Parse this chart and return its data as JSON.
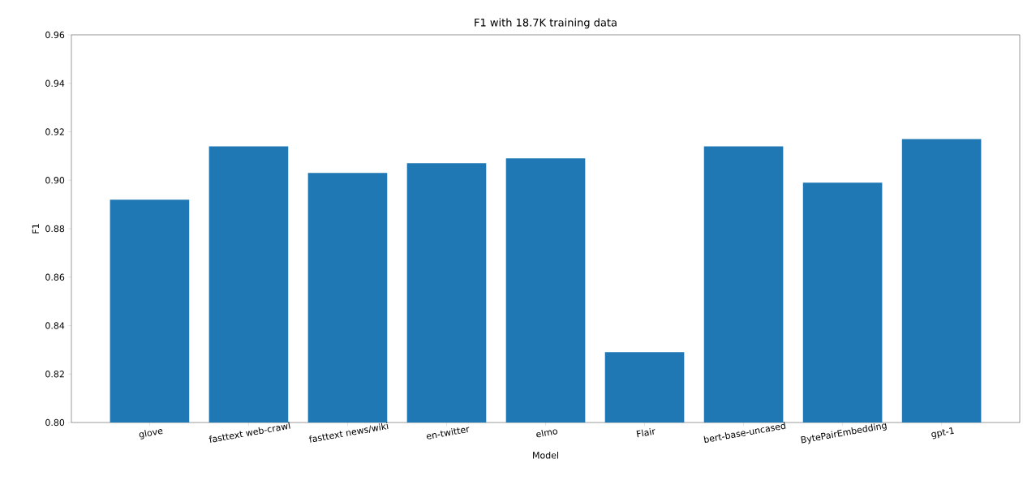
{
  "chart_data": {
    "type": "bar",
    "title": "F1 with 18.7K training data",
    "xlabel": "Model",
    "ylabel": "F1",
    "categories": [
      "glove",
      "fasttext web-crawl",
      "fasttext news/wiki",
      "en-twitter",
      "elmo",
      "Flair",
      "bert-base-uncased",
      "BytePairEmbedding",
      "gpt-1"
    ],
    "values": [
      0.892,
      0.914,
      0.903,
      0.907,
      0.909,
      0.829,
      0.914,
      0.899,
      0.917
    ],
    "color": "#1f77b4",
    "ylim": [
      0.8,
      0.96
    ],
    "yticks": [
      {
        "value": 0.8,
        "label": "0.80"
      },
      0.82,
      0.84,
      0.86,
      0.88,
      {
        "value": 0.9,
        "label": "0.90"
      },
      0.92,
      0.94,
      0.96
    ],
    "grid": false
  }
}
